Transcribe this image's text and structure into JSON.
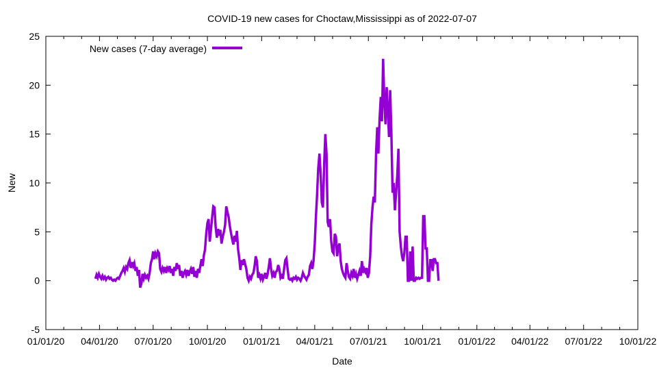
{
  "chart_data": {
    "type": "line",
    "title": "COVID-19 new cases for Choctaw,Mississippi as of 2022-07-07",
    "xlabel": "Date",
    "ylabel": "New",
    "ylim": [
      -5,
      25
    ],
    "yticks": [
      -5,
      0,
      5,
      10,
      15,
      20,
      25
    ],
    "xlim_days": [
      0,
      1004
    ],
    "xticks": [
      {
        "label": "01/01/20",
        "day": 0
      },
      {
        "label": "04/01/20",
        "day": 91
      },
      {
        "label": "07/01/20",
        "day": 182
      },
      {
        "label": "10/01/20",
        "day": 274
      },
      {
        "label": "01/01/21",
        "day": 366
      },
      {
        "label": "04/01/21",
        "day": 456
      },
      {
        "label": "07/01/21",
        "day": 547
      },
      {
        "label": "10/01/21",
        "day": 639
      },
      {
        "label": "01/01/22",
        "day": 731
      },
      {
        "label": "04/01/22",
        "day": 821
      },
      {
        "label": "07/01/22",
        "day": 912
      },
      {
        "label": "10/01/22",
        "day": 1004
      }
    ],
    "grid": false,
    "legend_position": "top-left",
    "series": [
      {
        "name": "New cases (7-day average)",
        "color": "#9400d3",
        "points": [
          [
            84,
            0.2
          ],
          [
            86,
            0.6
          ],
          [
            88,
            0.3
          ],
          [
            90,
            0.7
          ],
          [
            92,
            0.4
          ],
          [
            94,
            0.2
          ],
          [
            96,
            0.5
          ],
          [
            98,
            0.2
          ],
          [
            100,
            0.4
          ],
          [
            102,
            0.1
          ],
          [
            104,
            0.3
          ],
          [
            106,
            0.4
          ],
          [
            108,
            0.2
          ],
          [
            110,
            0.3
          ],
          [
            112,
            0.1
          ],
          [
            114,
            0.0
          ],
          [
            116,
            0.1
          ],
          [
            118,
            0.0
          ],
          [
            120,
            0.2
          ],
          [
            122,
            0.3
          ],
          [
            124,
            0.2
          ],
          [
            126,
            0.5
          ],
          [
            128,
            0.8
          ],
          [
            130,
            1.0
          ],
          [
            132,
            1.3
          ],
          [
            134,
            0.9
          ],
          [
            136,
            1.4
          ],
          [
            138,
            1.2
          ],
          [
            140,
            1.8
          ],
          [
            142,
            2.1
          ],
          [
            144,
            1.3
          ],
          [
            146,
            1.9
          ],
          [
            148,
            1.5
          ],
          [
            150,
            1.8
          ],
          [
            152,
            1.0
          ],
          [
            154,
            1.4
          ],
          [
            156,
            0.5
          ],
          [
            158,
            1.1
          ],
          [
            160,
            -0.7
          ],
          [
            162,
            -0.3
          ],
          [
            164,
            0.7
          ],
          [
            166,
            0.2
          ],
          [
            168,
            0.6
          ],
          [
            170,
            0.3
          ],
          [
            172,
            0.5
          ],
          [
            174,
            0.2
          ],
          [
            176,
            0.8
          ],
          [
            178,
            1.8
          ],
          [
            180,
            2.2
          ],
          [
            182,
            3.0
          ],
          [
            184,
            2.2
          ],
          [
            186,
            2.8
          ],
          [
            188,
            2.5
          ],
          [
            190,
            3.0
          ],
          [
            192,
            2.8
          ],
          [
            194,
            1.2
          ],
          [
            196,
            0.9
          ],
          [
            198,
            1.3
          ],
          [
            200,
            1.0
          ],
          [
            202,
            1.4
          ],
          [
            204,
            0.8
          ],
          [
            206,
            1.3
          ],
          [
            208,
            1.1
          ],
          [
            210,
            1.5
          ],
          [
            212,
            0.8
          ],
          [
            214,
            1.2
          ],
          [
            216,
            0.5
          ],
          [
            218,
            1.4
          ],
          [
            220,
            1.0
          ],
          [
            222,
            1.8
          ],
          [
            224,
            1.2
          ],
          [
            226,
            1.6
          ],
          [
            228,
            0.5
          ],
          [
            230,
            1.0
          ],
          [
            232,
            0.3
          ],
          [
            234,
            0.8
          ],
          [
            236,
            1.0
          ],
          [
            238,
            0.6
          ],
          [
            240,
            1.1
          ],
          [
            242,
            0.5
          ],
          [
            244,
            0.9
          ],
          [
            246,
            1.2
          ],
          [
            248,
            0.7
          ],
          [
            250,
            1.4
          ],
          [
            252,
            0.4
          ],
          [
            254,
            1.0
          ],
          [
            256,
            0.3
          ],
          [
            258,
            1.2
          ],
          [
            260,
            0.8
          ],
          [
            262,
            1.5
          ],
          [
            264,
            2.2
          ],
          [
            266,
            1.5
          ],
          [
            268,
            2.6
          ],
          [
            270,
            3.2
          ],
          [
            272,
            4.8
          ],
          [
            274,
            5.9
          ],
          [
            276,
            6.3
          ],
          [
            278,
            4.0
          ],
          [
            280,
            5.2
          ],
          [
            282,
            6.5
          ],
          [
            284,
            7.6
          ],
          [
            286,
            7.5
          ],
          [
            288,
            5.5
          ],
          [
            290,
            4.4
          ],
          [
            292,
            5.3
          ],
          [
            294,
            4.6
          ],
          [
            296,
            5.2
          ],
          [
            298,
            3.8
          ],
          [
            300,
            4.5
          ],
          [
            302,
            5.0
          ],
          [
            304,
            5.7
          ],
          [
            306,
            7.6
          ],
          [
            308,
            7.0
          ],
          [
            310,
            6.5
          ],
          [
            312,
            5.6
          ],
          [
            314,
            4.9
          ],
          [
            316,
            4.2
          ],
          [
            318,
            3.7
          ],
          [
            320,
            4.6
          ],
          [
            322,
            4.0
          ],
          [
            324,
            5.1
          ],
          [
            326,
            3.2
          ],
          [
            328,
            2.3
          ],
          [
            330,
            1.1
          ],
          [
            332,
            2.1
          ],
          [
            334,
            1.6
          ],
          [
            336,
            2.2
          ],
          [
            338,
            1.7
          ],
          [
            340,
            1.2
          ],
          [
            342,
            0.3
          ],
          [
            344,
            0.0
          ],
          [
            346,
            0.4
          ],
          [
            348,
            0.2
          ],
          [
            350,
            0.6
          ],
          [
            352,
            0.8
          ],
          [
            354,
            1.5
          ],
          [
            356,
            2.5
          ],
          [
            358,
            2.0
          ],
          [
            360,
            0.3
          ],
          [
            362,
            0.6
          ],
          [
            364,
            0.2
          ],
          [
            366,
            0.7
          ],
          [
            368,
            0.1
          ],
          [
            370,
            0.4
          ],
          [
            372,
            0.8
          ],
          [
            374,
            0.2
          ],
          [
            376,
            0.6
          ],
          [
            378,
            1.4
          ],
          [
            380,
            2.3
          ],
          [
            382,
            1.2
          ],
          [
            384,
            0.5
          ],
          [
            386,
            0.8
          ],
          [
            388,
            0.3
          ],
          [
            390,
            0.9
          ],
          [
            392,
            1.0
          ],
          [
            394,
            1.6
          ],
          [
            396,
            1.2
          ],
          [
            398,
            0.3
          ],
          [
            400,
            0.5
          ],
          [
            402,
            0.2
          ],
          [
            404,
            1.2
          ],
          [
            406,
            2.1
          ],
          [
            408,
            2.3
          ],
          [
            410,
            1.2
          ],
          [
            412,
            0.2
          ],
          [
            414,
            0.1
          ],
          [
            416,
            0.2
          ],
          [
            418,
            0.0
          ],
          [
            420,
            0.3
          ],
          [
            422,
            0.2
          ],
          [
            424,
            0.4
          ],
          [
            426,
            0.1
          ],
          [
            428,
            0.3
          ],
          [
            430,
            0.2
          ],
          [
            432,
            0.0
          ],
          [
            434,
            0.3
          ],
          [
            436,
            0.8
          ],
          [
            438,
            0.5
          ],
          [
            440,
            0.3
          ],
          [
            442,
            0.1
          ],
          [
            444,
            0.4
          ],
          [
            446,
            0.6
          ],
          [
            448,
            1.5
          ],
          [
            450,
            1.8
          ],
          [
            452,
            1.2
          ],
          [
            454,
            2.0
          ],
          [
            456,
            3.8
          ],
          [
            458,
            6.5
          ],
          [
            460,
            8.8
          ],
          [
            462,
            11.5
          ],
          [
            464,
            13.0
          ],
          [
            466,
            11.0
          ],
          [
            468,
            8.0
          ],
          [
            470,
            7.5
          ],
          [
            472,
            12.0
          ],
          [
            474,
            15.0
          ],
          [
            476,
            13.0
          ],
          [
            478,
            6.0
          ],
          [
            480,
            5.5
          ],
          [
            482,
            6.3
          ],
          [
            484,
            4.0
          ],
          [
            486,
            3.0
          ],
          [
            488,
            2.8
          ],
          [
            490,
            4.8
          ],
          [
            492,
            4.5
          ],
          [
            494,
            2.5
          ],
          [
            496,
            3.5
          ],
          [
            498,
            3.8
          ],
          [
            500,
            2.0
          ],
          [
            502,
            1.2
          ],
          [
            504,
            0.8
          ],
          [
            506,
            0.5
          ],
          [
            508,
            0.3
          ],
          [
            510,
            1.8
          ],
          [
            512,
            1.0
          ],
          [
            514,
            0.4
          ],
          [
            516,
            0.2
          ],
          [
            518,
            0.8
          ],
          [
            520,
            0.5
          ],
          [
            522,
            1.2
          ],
          [
            524,
            0.3
          ],
          [
            526,
            0.7
          ],
          [
            528,
            0.2
          ],
          [
            530,
            0.6
          ],
          [
            532,
            1.0
          ],
          [
            534,
            0.5
          ],
          [
            536,
            2.0
          ],
          [
            538,
            0.8
          ],
          [
            540,
            1.2
          ],
          [
            542,
            0.9
          ],
          [
            544,
            1.3
          ],
          [
            546,
            0.3
          ],
          [
            548,
            0.8
          ],
          [
            550,
            2.5
          ],
          [
            552,
            5.8
          ],
          [
            554,
            7.5
          ],
          [
            556,
            8.6
          ],
          [
            558,
            8.0
          ],
          [
            560,
            13.0
          ],
          [
            562,
            15.7
          ],
          [
            564,
            13.0
          ],
          [
            566,
            16.5
          ],
          [
            568,
            18.8
          ],
          [
            570,
            16.3
          ],
          [
            572,
            22.7
          ],
          [
            574,
            18.5
          ],
          [
            576,
            16.0
          ],
          [
            578,
            19.8
          ],
          [
            580,
            17.5
          ],
          [
            582,
            14.7
          ],
          [
            584,
            19.5
          ],
          [
            586,
            15.0
          ],
          [
            588,
            9.0
          ],
          [
            590,
            10.0
          ],
          [
            592,
            7.2
          ],
          [
            594,
            9.0
          ],
          [
            596,
            10.8
          ],
          [
            598,
            13.5
          ],
          [
            600,
            5.0
          ],
          [
            602,
            3.5
          ],
          [
            604,
            2.5
          ],
          [
            606,
            2.0
          ],
          [
            608,
            2.8
          ],
          [
            610,
            4.5
          ],
          [
            612,
            4.5
          ],
          [
            614,
            0.0
          ],
          [
            616,
            0.0
          ],
          [
            618,
            3.0
          ],
          [
            620,
            0.0
          ],
          [
            622,
            3.5
          ],
          [
            624,
            0.0
          ],
          [
            626,
            0.0
          ],
          [
            628,
            0.3
          ],
          [
            630,
            0.2
          ],
          [
            632,
            0.3
          ],
          [
            634,
            0.2
          ],
          [
            636,
            0.3
          ],
          [
            638,
            0.3
          ],
          [
            640,
            6.6
          ],
          [
            642,
            6.6
          ],
          [
            644,
            3.3
          ],
          [
            646,
            3.3
          ],
          [
            648,
            0.0
          ],
          [
            650,
            0.0
          ],
          [
            652,
            2.1
          ],
          [
            654,
            2.1
          ],
          [
            656,
            1.0
          ],
          [
            658,
            2.2
          ],
          [
            660,
            2.2
          ],
          [
            662,
            1.8
          ],
          [
            664,
            1.8
          ],
          [
            666,
            0.0
          ]
        ]
      }
    ]
  }
}
